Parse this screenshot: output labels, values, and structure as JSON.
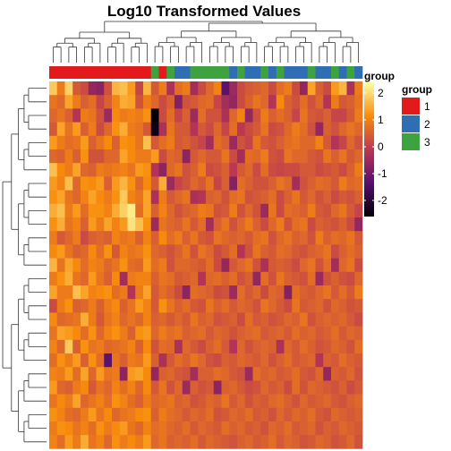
{
  "chart_data": {
    "type": "heatmap",
    "title": "Log10 Transformed Values",
    "n_rows": 27,
    "n_cols": 40,
    "value_range": [
      -2.6,
      2.4
    ],
    "colorbar": {
      "ticks": [
        "2",
        "1",
        "0",
        "-1",
        "-2"
      ],
      "tick_values": [
        2,
        1,
        0,
        -1,
        -2
      ],
      "stops": [
        "#000004",
        "#56106e",
        "#bb3754",
        "#f98c0a",
        "#fcffa4"
      ]
    },
    "group_annotation": {
      "title": "group",
      "legend": [
        {
          "label": "1",
          "color": "#e31a1c"
        },
        {
          "label": "2",
          "color": "#2f6db5"
        },
        {
          "label": "3",
          "color": "#3ea33e"
        }
      ],
      "columns": [
        "1",
        "1",
        "1",
        "1",
        "1",
        "1",
        "1",
        "1",
        "1",
        "1",
        "1",
        "1",
        "1",
        "3",
        "1",
        "3",
        "2",
        "2",
        "3",
        "3",
        "3",
        "3",
        "3",
        "2",
        "3",
        "2",
        "2",
        "3",
        "2",
        "3",
        "2",
        "2",
        "2",
        "3",
        "2",
        "2",
        "3",
        "2",
        "3",
        "2"
      ]
    },
    "values": [
      [
        1.8,
        0.9,
        1.9,
        0.4,
        0.2,
        -0.6,
        -0.7,
        0.3,
        1.6,
        1.7,
        1.3,
        0.1,
        1.6,
        0.4,
        0.9,
        -0.3,
        0.7,
        0.9,
        -0.4,
        0.2,
        0.6,
        1.0,
        -1.3,
        -0.5,
        0.2,
        0.4,
        0.5,
        0.6,
        0.2,
        0.7,
        0.9,
        0.2,
        -0.6,
        1.4,
        0.5,
        0.2,
        1.3,
        1.6,
        -0.3,
        0.9
      ],
      [
        0.8,
        0.6,
        1.4,
        0.9,
        0.5,
        0.7,
        0.1,
        0.5,
        1.0,
        1.5,
        1.4,
        0.3,
        0.9,
        0.6,
        0.2,
        0.5,
        -0.8,
        0.3,
        0.4,
        0.6,
        0.7,
        0.1,
        -0.4,
        -0.6,
        0.2,
        0.5,
        0.8,
        0.6,
        -0.2,
        1.1,
        0.5,
        0.3,
        0.7,
        0.3,
        0.6,
        -0.2,
        0.9,
        0.4,
        0.5,
        0.8
      ],
      [
        0.6,
        0.8,
        0.5,
        -0.2,
        0.9,
        0.8,
        0.3,
        -0.5,
        1.1,
        0.9,
        1.0,
        0.9,
        1.2,
        -2.6,
        0.2,
        0.7,
        0.1,
        0.5,
        -0.5,
        0.7,
        0.3,
        0.3,
        -0.3,
        0.6,
        1.0,
        -0.6,
        0.3,
        0.9,
        0.5,
        0.7,
        0.5,
        0.1,
        0.8,
        0.4,
        0.3,
        0.5,
        0.1,
        0.1,
        0.4,
        0.9
      ],
      [
        0.4,
        1.4,
        0.8,
        1.3,
        0.5,
        0.9,
        0.2,
        0.6,
        1.2,
        1.5,
        0.9,
        0.8,
        0.4,
        -2.4,
        -0.3,
        0.8,
        0.4,
        0.4,
        -0.2,
        0.4,
        0.2,
        0.6,
        0.1,
        0.7,
        -0.1,
        0.2,
        0.4,
        0.8,
        0.2,
        0.3,
        0.6,
        0.9,
        0.7,
        0.3,
        -0.6,
        0.5,
        0.3,
        0.6,
        0.8,
        0.6
      ],
      [
        1.3,
        0.9,
        0.7,
        0.8,
        1.3,
        0.5,
        0.8,
        1.1,
        0.5,
        1.2,
        1.1,
        0.8,
        1.7,
        0.4,
        0.7,
        0.9,
        0.4,
        0.5,
        0.3,
        0.1,
        -0.4,
        0.7,
        0.5,
        -0.5,
        0.3,
        0.1,
        0.8,
        0.4,
        0.3,
        0.5,
        0.7,
        0.8,
        0.6,
        0.6,
        1.0,
        0.4,
        -0.2,
        0.1,
        0.6,
        0.3
      ],
      [
        0.6,
        0.5,
        0.9,
        0.5,
        1.2,
        0.3,
        0.3,
        0.6,
        0.6,
        1.4,
        1.1,
        0.9,
        0.9,
        1.3,
        0.2,
        0.6,
        0.5,
        -0.7,
        0.4,
        0.6,
        0.4,
        0.4,
        0.8,
        0.2,
        -0.4,
        0.7,
        0.6,
        0.9,
        0.3,
        0.2,
        0.8,
        0.6,
        0.6,
        0.4,
        0.3,
        0.8,
        0.5,
        0.8,
        0.4,
        0.6
      ],
      [
        1.7,
        1.1,
        0.9,
        1.4,
        0.6,
        0.5,
        0.9,
        0.8,
        0.9,
        1.0,
        0.8,
        1.3,
        1.2,
        -0.2,
        -0.7,
        0.6,
        0.8,
        0.3,
        0.5,
        0.9,
        0.2,
        0.3,
        0.5,
        -0.1,
        0.4,
        0.6,
        0.2,
        0.7,
        0.2,
        0.1,
        0.2,
        0.2,
        0.4,
        0.4,
        0.2,
        0.3,
        0.4,
        0.2,
        0.5,
        0.9
      ],
      [
        1.3,
        1.0,
        1.7,
        0.6,
        1.2,
        1.1,
        1.3,
        0.5,
        1.3,
        1.6,
        1.2,
        0.6,
        1.1,
        0.4,
        1.5,
        -0.5,
        0.1,
        0.3,
        0.6,
        0.4,
        0.8,
        0.1,
        0.5,
        -0.8,
        0.7,
        0.5,
        0.3,
        0.3,
        0.5,
        0.8,
        0.6,
        -0.4,
        0.3,
        0.5,
        0.7,
        0.6,
        0.4,
        0.9,
        0.6,
        0.7
      ],
      [
        1.2,
        1.4,
        0.8,
        0.6,
        1.0,
        1.4,
        1.1,
        0.9,
        1.2,
        1.8,
        1.0,
        0.8,
        1.4,
        -0.3,
        0.9,
        0.4,
        0.6,
        0.8,
        -0.3,
        -0.2,
        0.5,
        0.6,
        0.3,
        0.7,
        0.8,
        0.3,
        0.4,
        0.5,
        0.7,
        0.2,
        0.5,
        0.8,
        0.4,
        0.6,
        0.3,
        0.5,
        0.2,
        0.4,
        0.3,
        0.5
      ],
      [
        1.5,
        1.7,
        0.9,
        1.3,
        0.7,
        1.2,
        1.2,
        1.0,
        1.5,
        1.9,
        2.2,
        0.7,
        1.4,
        0.5,
        1.0,
        0.6,
        0.3,
        0.5,
        0.6,
        0.9,
        0.8,
        0.3,
        0.4,
        0.9,
        0.3,
        0.6,
        0.3,
        -0.5,
        0.8,
        0.2,
        0.7,
        0.6,
        0.5,
        0.9,
        0.4,
        0.3,
        0.6,
        0.8,
        0.4,
        0.1
      ],
      [
        1.2,
        1.5,
        0.8,
        1.0,
        0.5,
        1.3,
        0.9,
        1.4,
        1.0,
        1.3,
        2.1,
        1.7,
        1.2,
        -0.5,
        0.8,
        0.6,
        0.5,
        0.8,
        0.4,
        0.7,
        -0.4,
        0.5,
        0.8,
        0.3,
        0.6,
        0.9,
        0.5,
        0.2,
        0.6,
        0.9,
        0.3,
        0.7,
        0.8,
        0.2,
        0.5,
        0.4,
        0.3,
        0.5,
        0.2,
        -0.6
      ],
      [
        0.9,
        0.4,
        0.6,
        0.9,
        0.2,
        0.5,
        0.6,
        0.5,
        1.0,
        0.8,
        0.9,
        0.5,
        1.0,
        0.5,
        1.1,
        0.7,
        0.9,
        0.5,
        0.8,
        0.4,
        0.3,
        0.8,
        0.6,
        0.5,
        0.6,
        0.4,
        0.7,
        0.8,
        0.3,
        0.6,
        0.8,
        0.5,
        0.6,
        0.3,
        0.9,
        0.5,
        0.7,
        0.6,
        0.8,
        0.4
      ],
      [
        1.1,
        1.3,
        0.8,
        0.5,
        0.6,
        1.1,
        0.7,
        1.2,
        0.4,
        1.0,
        0.8,
        0.9,
        1.2,
        0.6,
        0.5,
        0.3,
        0.5,
        0.8,
        0.3,
        0.8,
        0.6,
        0.2,
        0.4,
        0.7,
        -0.2,
        0.3,
        0.8,
        0.5,
        0.4,
        0.7,
        0.6,
        0.4,
        0.3,
        0.5,
        0.6,
        0.8,
        0.2,
        0.5,
        0.7,
        0.5
      ],
      [
        1.6,
        0.8,
        1.4,
        1.1,
        0.7,
        1.0,
        0.9,
        0.6,
        0.8,
        1.2,
        0.7,
        0.6,
        1.3,
        0.7,
        0.9,
        0.3,
        0.6,
        0.6,
        0.5,
        0.4,
        0.7,
        0.2,
        -0.6,
        0.4,
        0.6,
        0.8,
        0.3,
        -0.3,
        0.4,
        0.5,
        0.4,
        0.2,
        0.6,
        0.8,
        0.3,
        0.7,
        -0.4,
        0.6,
        0.8,
        0.2
      ],
      [
        0.9,
        1.2,
        1.5,
        0.8,
        0.6,
        1.3,
        0.8,
        0.5,
        1.1,
        -0.4,
        0.9,
        1.0,
        1.0,
        0.5,
        0.8,
        0.7,
        0.4,
        0.5,
        0.6,
        -0.2,
        0.6,
        0.7,
        0.5,
        0.7,
        0.3,
        0.5,
        -0.6,
        0.7,
        0.3,
        0.8,
        0.5,
        0.4,
        0.3,
        0.7,
        -0.5,
        0.3,
        0.5,
        0.3,
        0.2,
        0.6
      ],
      [
        1.4,
        0.9,
        0.9,
        1.7,
        1.4,
        1.0,
        1.1,
        1.2,
        0.7,
        0.9,
        -0.2,
        0.9,
        1.4,
        0.4,
        0.7,
        0.5,
        0.2,
        -0.7,
        0.7,
        0.6,
        0.5,
        0.2,
        0.3,
        -0.5,
        0.7,
        0.4,
        0.6,
        0.2,
        0.6,
        0.5,
        -0.8,
        0.7,
        0.5,
        0.4,
        0.6,
        0.8,
        0.4,
        0.7,
        0.4,
        0.9
      ],
      [
        0.2,
        0.9,
        1.2,
        0.5,
        0.6,
        0.9,
        0.5,
        0.9,
        1.1,
        0.5,
        0.8,
        1.3,
        1.0,
        0.4,
        1.2,
        0.8,
        0.5,
        0.7,
        0.4,
        0.3,
        0.8,
        0.5,
        0.7,
        0.4,
        0.6,
        0.5,
        0.3,
        0.8,
        0.6,
        0.4,
        0.2,
        0.8,
        0.4,
        0.5,
        0.6,
        0.3,
        0.6,
        0.5,
        0.3,
        0.4
      ],
      [
        1.1,
        0.6,
        0.7,
        0.8,
        1.5,
        0.9,
        0.4,
        0.8,
        1.0,
        0.6,
        0.8,
        0.6,
        1.0,
        0.5,
        0.6,
        0.4,
        0.6,
        0.4,
        0.8,
        0.5,
        0.6,
        0.3,
        0.4,
        0.5,
        0.2,
        0.7,
        0.4,
        0.5,
        0.3,
        0.4,
        0.6,
        0.5,
        0.8,
        0.3,
        0.5,
        0.6,
        0.5,
        0.6,
        0.4,
        0.2
      ],
      [
        0.8,
        1.4,
        1.3,
        1.1,
        0.7,
        1.2,
        0.6,
        1.0,
        1.2,
        0.9,
        0.5,
        1.2,
        1.3,
        0.6,
        0.9,
        0.7,
        0.8,
        0.5,
        0.6,
        0.7,
        0.4,
        0.6,
        0.5,
        0.3,
        0.5,
        0.6,
        0.7,
        0.4,
        0.5,
        0.6,
        0.4,
        0.7,
        0.5,
        0.6,
        0.4,
        0.5,
        0.7,
        0.4,
        0.6,
        0.5
      ],
      [
        1.0,
        0.6,
        1.8,
        0.5,
        1.2,
        0.8,
        0.9,
        0.6,
        0.7,
        0.8,
        1.0,
        0.5,
        1.1,
        0.3,
        0.7,
        0.6,
        -0.3,
        0.6,
        0.4,
        0.2,
        0.5,
        0.7,
        0.4,
        -0.2,
        0.6,
        0.3,
        0.5,
        0.6,
        0.5,
        -0.3,
        0.6,
        0.4,
        0.7,
        0.5,
        0.3,
        0.4,
        0.6,
        0.5,
        0.3,
        0.7
      ],
      [
        0.7,
        1.2,
        0.9,
        1.3,
        0.5,
        1.2,
        0.7,
        -1.3,
        0.8,
        0.5,
        0.9,
        0.8,
        1.3,
        0.5,
        -0.3,
        0.4,
        0.7,
        0.5,
        0.8,
        0.6,
        0.3,
        0.2,
        0.5,
        0.4,
        0.6,
        0.5,
        0.4,
        0.6,
        0.3,
        0.5,
        0.7,
        0.4,
        0.5,
        0.6,
        -0.2,
        0.5,
        0.4,
        0.7,
        0.5,
        0.4
      ],
      [
        1.0,
        0.9,
        1.3,
        0.7,
        1.4,
        0.6,
        1.3,
        0.8,
        0.9,
        -0.7,
        1.3,
        1.4,
        1.1,
        -0.6,
        0.5,
        0.6,
        0.4,
        0.3,
        -0.4,
        0.5,
        0.5,
        0.7,
        0.6,
        0.4,
        0.3,
        -0.5,
        0.7,
        0.5,
        0.6,
        0.4,
        0.5,
        0.7,
        0.4,
        0.3,
        0.6,
        -0.6,
        0.5,
        0.4,
        0.6,
        0.3
      ],
      [
        1.3,
        0.6,
        0.5,
        0.9,
        1.1,
        0.4,
        0.8,
        0.6,
        1.0,
        0.7,
        1.0,
        0.6,
        1.1,
        0.4,
        0.8,
        0.3,
        0.6,
        -0.5,
        0.5,
        0.3,
        0.4,
        -0.7,
        0.5,
        0.6,
        0.4,
        0.2,
        0.3,
        0.6,
        0.4,
        0.5,
        0.2,
        0.7,
        0.3,
        0.6,
        0.5,
        0.4,
        0.3,
        0.5,
        0.2,
        0.4
      ],
      [
        0.8,
        1.1,
        0.9,
        1.4,
        0.6,
        0.8,
        1.0,
        0.7,
        1.2,
        1.0,
        0.7,
        0.5,
        0.9,
        0.6,
        0.7,
        0.8,
        0.5,
        0.6,
        0.3,
        0.4,
        0.6,
        0.5,
        0.8,
        0.4,
        0.6,
        0.3,
        0.5,
        0.4,
        0.6,
        0.7,
        0.5,
        0.3,
        0.6,
        0.4,
        0.5,
        0.6,
        0.4,
        0.3,
        0.5,
        0.6
      ],
      [
        1.2,
        1.0,
        0.7,
        0.6,
        0.9,
        1.3,
        0.8,
        1.1,
        0.6,
        0.8,
        0.9,
        1.1,
        1.2,
        0.5,
        0.9,
        0.7,
        0.6,
        0.4,
        0.6,
        0.5,
        0.7,
        0.3,
        0.4,
        0.6,
        0.5,
        0.7,
        0.4,
        0.5,
        0.3,
        0.6,
        0.4,
        0.6,
        0.5,
        0.7,
        0.4,
        0.3,
        0.6,
        0.5,
        0.4,
        0.5
      ],
      [
        0.9,
        1.2,
        1.1,
        0.8,
        1.0,
        0.7,
        1.2,
        0.9,
        1.1,
        1.3,
        0.8,
        0.6,
        1.0,
        0.7,
        0.8,
        0.6,
        0.5,
        0.7,
        0.4,
        0.6,
        0.5,
        0.4,
        0.7,
        0.5,
        0.6,
        0.4,
        0.5,
        0.3,
        0.6,
        0.5,
        0.7,
        0.4,
        0.5,
        0.6,
        0.3,
        0.5,
        0.4,
        0.6,
        0.5,
        0.4
      ],
      [
        1.0,
        0.7,
        1.3,
        0.9,
        1.5,
        0.8,
        1.0,
        0.6,
        1.2,
        0.9,
        1.1,
        0.9,
        1.3,
        0.6,
        0.8,
        0.5,
        0.6,
        0.5,
        0.7,
        0.4,
        0.6,
        0.5,
        0.4,
        0.3,
        0.5,
        0.6,
        0.4,
        0.5,
        0.7,
        0.4,
        0.6,
        0.5,
        0.3,
        0.4,
        0.6,
        0.5,
        0.3,
        0.4,
        0.6,
        0.3
      ]
    ]
  }
}
